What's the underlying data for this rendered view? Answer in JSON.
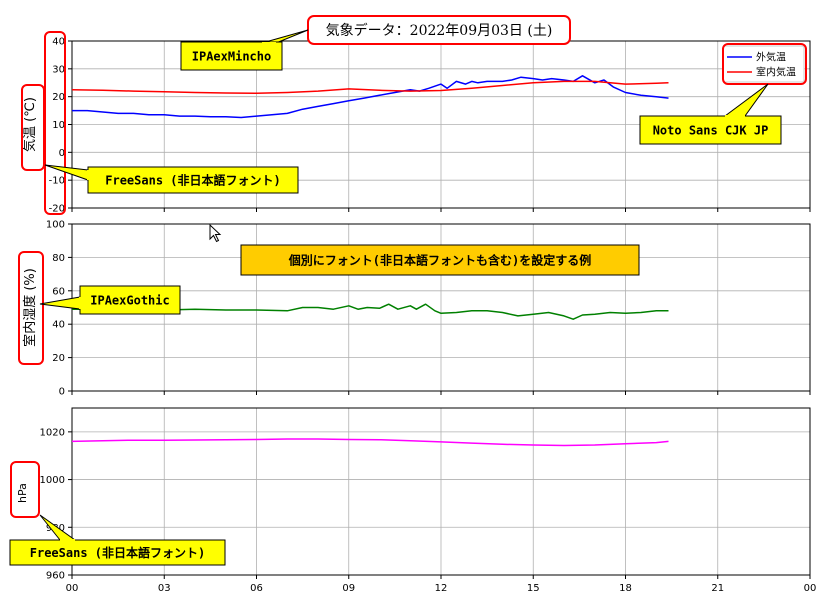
{
  "title": "気象データ：2022年09月03日 (土)",
  "chart_data": [
    {
      "type": "line",
      "ylabel": "気温 (℃)",
      "ylim": [
        -20,
        40
      ],
      "yticks": [
        -20,
        -10,
        0,
        10,
        20,
        30,
        40
      ],
      "xlim": [
        0,
        24
      ],
      "xticks": [
        "00",
        "03",
        "06",
        "09",
        "12",
        "15",
        "18",
        "21",
        "00"
      ],
      "grid": true,
      "legend": "top-right",
      "series": [
        {
          "name": "外気温",
          "color": "#0000ff",
          "x": [
            0,
            0.5,
            1,
            1.5,
            2,
            2.5,
            3,
            3.5,
            4,
            4.5,
            5,
            5.5,
            6,
            6.5,
            7,
            7.5,
            8,
            8.5,
            9,
            9.5,
            10,
            10.5,
            11,
            11.3,
            11.6,
            12,
            12.2,
            12.5,
            12.8,
            13,
            13.2,
            13.5,
            14,
            14.3,
            14.6,
            15,
            15.3,
            15.6,
            16,
            16.3,
            16.6,
            17,
            17.3,
            17.6,
            18,
            18.5,
            19,
            19.4
          ],
          "values": [
            15,
            15,
            14.5,
            14,
            14,
            13.5,
            13.5,
            13,
            13,
            12.8,
            12.8,
            12.5,
            13,
            13.5,
            14,
            15.5,
            16.5,
            17.5,
            18.5,
            19.5,
            20.5,
            21.5,
            22.5,
            22,
            23,
            24.5,
            23,
            25.5,
            24.5,
            25.5,
            25,
            25.5,
            25.5,
            26,
            27,
            26.5,
            26,
            26.5,
            26,
            25.5,
            27.5,
            25,
            26,
            23.5,
            21.5,
            20.5,
            20,
            19.5
          ]
        },
        {
          "name": "室内気温",
          "color": "#ff0000",
          "x": [
            0,
            1,
            2,
            3,
            4,
            5,
            6,
            7,
            8,
            9,
            10,
            11,
            12,
            13,
            14,
            15,
            16,
            17,
            18,
            19,
            19.4
          ],
          "values": [
            22.5,
            22.3,
            22,
            21.8,
            21.5,
            21.3,
            21.2,
            21.5,
            22,
            22.8,
            22.3,
            22,
            22.2,
            23,
            24,
            25,
            25.5,
            25.5,
            24.5,
            24.8,
            25
          ]
        }
      ]
    },
    {
      "type": "line",
      "ylabel": "室内湿度 (%)",
      "ylim": [
        0,
        100
      ],
      "yticks": [
        0,
        20,
        40,
        60,
        80,
        100
      ],
      "xlim": [
        0,
        24
      ],
      "xticks": [
        "00",
        "03",
        "06",
        "09",
        "12",
        "15",
        "18",
        "21",
        "00"
      ],
      "grid": true,
      "series": [
        {
          "name": "",
          "color": "#008000",
          "x": [
            0,
            1,
            2,
            3,
            4,
            5,
            6,
            7,
            7.5,
            8,
            8.5,
            9,
            9.3,
            9.6,
            10,
            10.3,
            10.6,
            11,
            11.2,
            11.5,
            11.8,
            12,
            12.5,
            13,
            13.5,
            14,
            14.5,
            15,
            15.5,
            16,
            16.3,
            16.6,
            17,
            17.5,
            18,
            18.5,
            19,
            19.4
          ],
          "values": [
            49,
            49,
            49,
            48.5,
            49,
            48.5,
            48.5,
            48,
            50,
            50,
            49,
            51,
            49,
            50,
            49.5,
            52,
            49,
            51,
            49,
            52,
            48,
            46.5,
            47,
            48,
            48,
            47,
            45,
            46,
            47,
            45,
            43,
            45.5,
            46,
            47,
            46.5,
            47,
            48,
            48
          ]
        }
      ]
    },
    {
      "type": "line",
      "ylabel": "hPa",
      "ylim": [
        960,
        1030
      ],
      "yticks": [
        960,
        980,
        1000,
        1020
      ],
      "xlim": [
        0,
        24
      ],
      "xticks": [
        "00",
        "03",
        "06",
        "09",
        "12",
        "15",
        "18",
        "21",
        "00"
      ],
      "grid": true,
      "series": [
        {
          "name": "",
          "color": "#ff00ff",
          "x": [
            0,
            1,
            2,
            3,
            4,
            5,
            6,
            7,
            8,
            9,
            10,
            11,
            12,
            13,
            14,
            15,
            16,
            17,
            18,
            19,
            19.4
          ],
          "values": [
            1016,
            1016.3,
            1016.5,
            1016.5,
            1016.6,
            1016.7,
            1016.8,
            1017,
            1017,
            1016.8,
            1016.7,
            1016.3,
            1015.8,
            1015.3,
            1014.8,
            1014.5,
            1014.3,
            1014.5,
            1015,
            1015.5,
            1016
          ]
        }
      ]
    }
  ],
  "annotations": {
    "mincho": "IPAexMincho",
    "freesans_1": "FreeSans (非日本語フォント)",
    "noto": "Noto Sans CJK JP",
    "gothic": "IPAexGothic",
    "example": "個別にフォント(非日本語フォントも含む)を設定する例",
    "freesans_2": "FreeSans (非日本語フォント)"
  },
  "colors": {
    "callout_fill": "#ffff00",
    "banner_fill": "#ffcc00",
    "highlight_border": "#ff0000",
    "grid": "#b0b0b0"
  }
}
